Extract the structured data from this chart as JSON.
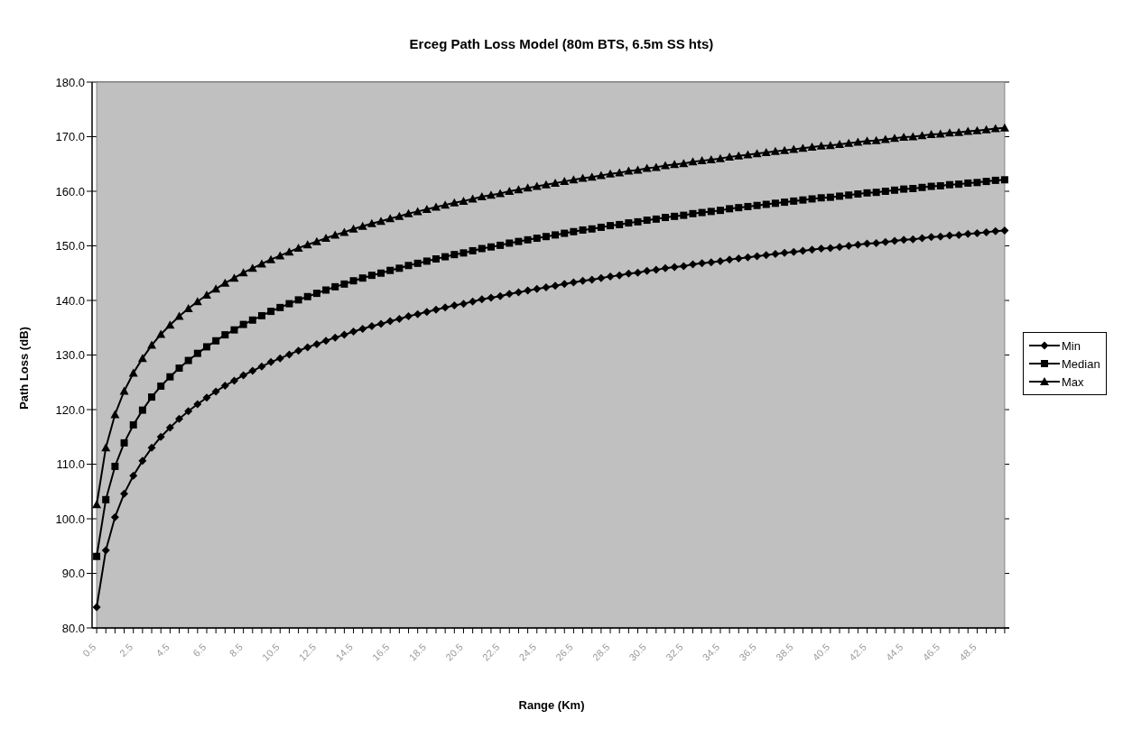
{
  "chart_data": {
    "type": "line",
    "title": "Erceg Path Loss Model (80m BTS, 6.5m SS hts)",
    "xlabel": "Range (Km)",
    "ylabel": "Path Loss (dB)",
    "categories": [
      "0.5",
      null,
      null,
      null,
      "2.5",
      null,
      null,
      null,
      "4.5",
      null,
      null,
      null,
      "6.5",
      null,
      null,
      null,
      "8.5",
      null,
      null,
      null,
      "10.5",
      null,
      null,
      null,
      "12.5",
      null,
      null,
      null,
      "14.5",
      null,
      null,
      null,
      "16.5",
      null,
      null,
      null,
      "18.5",
      null,
      null,
      null,
      "20.5",
      null,
      null,
      null,
      "22.5",
      null,
      null,
      null,
      "24.5",
      null,
      null,
      null,
      "26.5",
      null,
      null,
      null,
      "28.5",
      null,
      null,
      null,
      "30.5",
      null,
      null,
      null,
      "32.5",
      null,
      null,
      null,
      "34.5",
      null,
      null,
      null,
      "36.5",
      null,
      null,
      null,
      "38.5",
      null,
      null,
      null,
      "40.5",
      null,
      null,
      null,
      "42.5",
      null,
      null,
      null,
      "44.5",
      null,
      null,
      null,
      "46.5",
      null,
      null,
      null,
      "48.5",
      null,
      null,
      null
    ],
    "series": [
      {
        "name": "Min",
        "color": "#000000",
        "marker": "diamond",
        "values": [
          83.8,
          94.2,
          100.3,
          104.6,
          107.9,
          110.6,
          113.0,
          115.0,
          116.7,
          118.3,
          119.7,
          121.0,
          122.2,
          123.3,
          124.4,
          125.3,
          126.3,
          127.1,
          127.9,
          128.7,
          129.4,
          130.1,
          130.8,
          131.4,
          132.0,
          132.6,
          133.2,
          133.7,
          134.3,
          134.8,
          135.3,
          135.7,
          136.2,
          136.6,
          137.1,
          137.5,
          137.9,
          138.3,
          138.7,
          139.1,
          139.4,
          139.8,
          140.2,
          140.5,
          140.8,
          141.2,
          141.5,
          141.8,
          142.1,
          142.4,
          142.7,
          143.0,
          143.3,
          143.6,
          143.8,
          144.1,
          144.4,
          144.6,
          144.9,
          145.1,
          145.4,
          145.6,
          145.9,
          146.1,
          146.3,
          146.6,
          146.8,
          147.0,
          147.2,
          147.5,
          147.7,
          147.9,
          148.1,
          148.3,
          148.5,
          148.7,
          148.9,
          149.1,
          149.3,
          149.5,
          149.6,
          149.8,
          150.0,
          150.2,
          150.4,
          150.5,
          150.7,
          150.9,
          151.1,
          151.2,
          151.4,
          151.6,
          151.7,
          151.9,
          152.0,
          152.2,
          152.3,
          152.5,
          152.7,
          152.8
        ]
      },
      {
        "name": "Median",
        "color": "#000000",
        "marker": "square",
        "values": [
          93.1,
          103.5,
          109.6,
          113.9,
          117.2,
          119.9,
          122.3,
          124.3,
          126.0,
          127.6,
          129.0,
          130.3,
          131.5,
          132.6,
          133.7,
          134.6,
          135.6,
          136.4,
          137.2,
          138.0,
          138.7,
          139.4,
          140.1,
          140.7,
          141.3,
          141.9,
          142.5,
          143.0,
          143.6,
          144.1,
          144.6,
          145.0,
          145.5,
          145.9,
          146.4,
          146.8,
          147.2,
          147.6,
          148.0,
          148.4,
          148.7,
          149.1,
          149.5,
          149.8,
          150.1,
          150.5,
          150.8,
          151.1,
          151.4,
          151.7,
          152.0,
          152.3,
          152.6,
          152.9,
          153.1,
          153.4,
          153.7,
          153.9,
          154.2,
          154.4,
          154.7,
          154.9,
          155.2,
          155.4,
          155.6,
          155.9,
          156.1,
          156.3,
          156.5,
          156.8,
          157.0,
          157.2,
          157.4,
          157.6,
          157.8,
          158.0,
          158.2,
          158.4,
          158.6,
          158.8,
          158.9,
          159.1,
          159.3,
          159.5,
          159.7,
          159.8,
          160.0,
          160.2,
          160.4,
          160.5,
          160.7,
          160.9,
          161.0,
          161.2,
          161.3,
          161.5,
          161.6,
          161.8,
          162.0,
          162.1
        ]
      },
      {
        "name": "Max",
        "color": "#000000",
        "marker": "triangle",
        "values": [
          102.6,
          113.0,
          119.1,
          123.4,
          126.7,
          129.4,
          131.8,
          133.8,
          135.5,
          137.1,
          138.5,
          139.8,
          141.0,
          142.1,
          143.2,
          144.1,
          145.1,
          145.9,
          146.7,
          147.5,
          148.2,
          148.9,
          149.6,
          150.2,
          150.8,
          151.4,
          152.0,
          152.5,
          153.1,
          153.6,
          154.1,
          154.5,
          155.0,
          155.4,
          155.9,
          156.3,
          156.7,
          157.1,
          157.5,
          157.9,
          158.2,
          158.6,
          159.0,
          159.3,
          159.6,
          160.0,
          160.3,
          160.6,
          160.9,
          161.2,
          161.5,
          161.8,
          162.1,
          162.4,
          162.6,
          162.9,
          163.2,
          163.4,
          163.7,
          163.9,
          164.2,
          164.4,
          164.7,
          164.9,
          165.1,
          165.4,
          165.6,
          165.8,
          166.0,
          166.3,
          166.5,
          166.7,
          166.9,
          167.1,
          167.3,
          167.5,
          167.7,
          167.9,
          168.1,
          168.3,
          168.4,
          168.6,
          168.8,
          169.0,
          169.2,
          169.3,
          169.5,
          169.7,
          169.9,
          170.0,
          170.2,
          170.4,
          170.5,
          170.7,
          170.8,
          171.0,
          171.1,
          171.3,
          171.5,
          171.6
        ]
      }
    ],
    "ylim": [
      80,
      180
    ],
    "yticks": [
      {
        "value": 80,
        "label": "80.0"
      },
      {
        "value": 90,
        "label": "90.0"
      },
      {
        "value": 100,
        "label": "100.0"
      },
      {
        "value": 110,
        "label": "110.0"
      },
      {
        "value": 120,
        "label": "120.0"
      },
      {
        "value": 130,
        "label": "130.0"
      },
      {
        "value": 140,
        "label": "140.0"
      },
      {
        "value": 150,
        "label": "150.0"
      },
      {
        "value": 160,
        "label": "160.0"
      },
      {
        "value": 170,
        "label": "170.0"
      },
      {
        "value": 180,
        "label": "180.0"
      }
    ],
    "grid": "y",
    "legend": "right",
    "line_style": "solid"
  }
}
